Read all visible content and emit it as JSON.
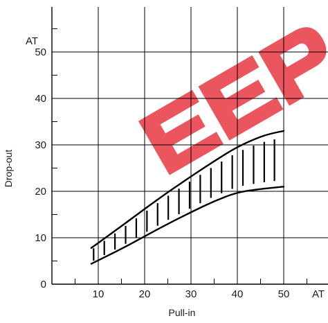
{
  "chart_data": {
    "type": "area",
    "xlabel": "Pull-in",
    "ylabel": "Drop-out",
    "x_unit": "AT",
    "y_unit": "AT",
    "xlim": [
      0,
      50
    ],
    "ylim": [
      0,
      60
    ],
    "x_ticks": [
      10,
      20,
      30,
      40,
      50
    ],
    "y_ticks": [
      0,
      10,
      20,
      30,
      40,
      50
    ],
    "grid": true,
    "band": {
      "upper": [
        [
          8.5,
          7.8
        ],
        [
          15,
          12.5
        ],
        [
          20,
          16.2
        ],
        [
          25,
          19.8
        ],
        [
          30,
          23.2
        ],
        [
          35,
          26.5
        ],
        [
          40,
          29.6
        ],
        [
          45,
          31.8
        ],
        [
          48,
          32.6
        ],
        [
          50,
          33.0
        ]
      ],
      "lower": [
        [
          8.5,
          4.4
        ],
        [
          15,
          7.6
        ],
        [
          20,
          10.3
        ],
        [
          25,
          13.0
        ],
        [
          30,
          15.5
        ],
        [
          35,
          17.9
        ],
        [
          40,
          19.8
        ],
        [
          45,
          20.5
        ],
        [
          48,
          20.8
        ],
        [
          50,
          21.0
        ]
      ],
      "hatch_x": [
        9.0,
        11.3,
        13.6,
        15.9,
        18.2,
        20.5,
        22.8,
        25.1,
        27.4,
        29.7,
        32.0,
        34.3,
        36.6,
        38.9,
        41.2,
        43.5,
        45.8,
        48.0
      ]
    },
    "colors": {
      "line": "#000000",
      "grid": "#000000",
      "watermark": "#e8434d"
    }
  },
  "watermark": {
    "text": "EEPI"
  }
}
